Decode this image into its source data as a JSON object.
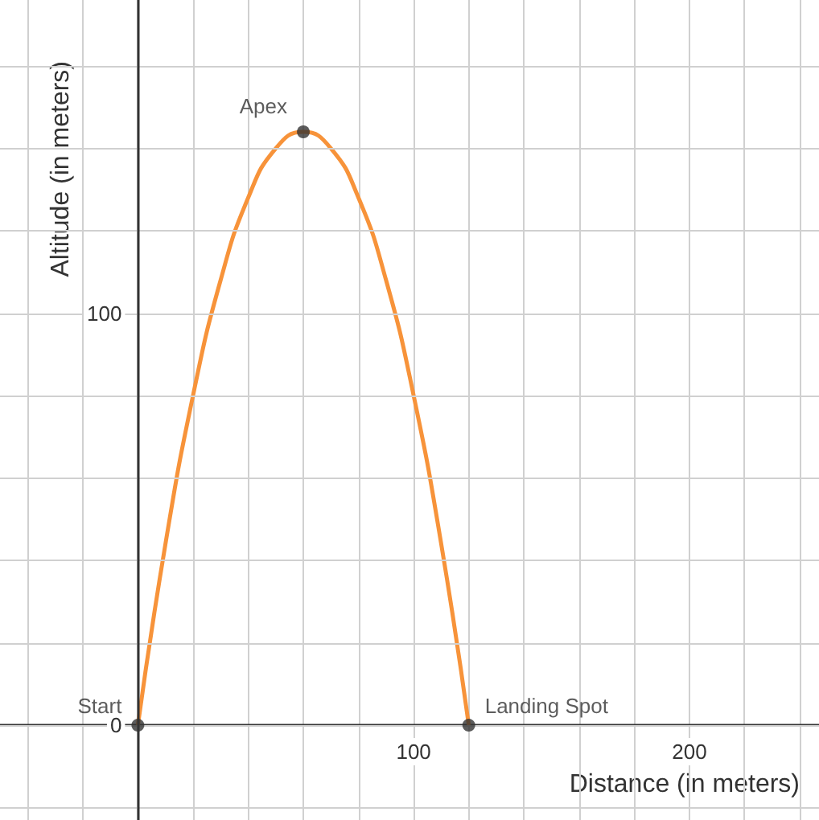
{
  "chart_data": {
    "type": "line",
    "xlabel": "Distance (in meters)",
    "ylabel": "Altitude (in meters)",
    "series": [
      {
        "color": "#f7933a",
        "marker": "none",
        "x": [
          0,
          10,
          20,
          30,
          40,
          50,
          60,
          70,
          80,
          90,
          100,
          110,
          120
        ],
        "values": [
          0,
          44,
          80,
          108,
          128,
          140,
          144,
          140,
          128,
          108,
          80,
          44,
          0
        ]
      },
      {
        "type": "scatter",
        "color": "#333333",
        "marker": "circle",
        "x": [
          0,
          60,
          120
        ],
        "values": [
          0,
          144,
          0
        ]
      }
    ],
    "annotations": [
      {
        "text": "Start",
        "x": 0,
        "y": 0
      },
      {
        "text": "Apex",
        "x": 60,
        "y": 144
      },
      {
        "text": "Landing Spot",
        "x": 120,
        "y": 0
      }
    ],
    "xlim": [
      -50,
      247
    ],
    "ylim": [
      -23,
      176
    ],
    "xticks": [
      {
        "value": -40,
        "label": null
      },
      {
        "value": -20,
        "label": null
      },
      {
        "value": 0,
        "label": null
      },
      {
        "value": 20,
        "label": null
      },
      {
        "value": 40,
        "label": null
      },
      {
        "value": 60,
        "label": null
      },
      {
        "value": 80,
        "label": null
      },
      100,
      {
        "value": 120,
        "label": null
      },
      {
        "value": 140,
        "label": null
      },
      {
        "value": 160,
        "label": null
      },
      {
        "value": 180,
        "label": null
      },
      200,
      {
        "value": 220,
        "label": null
      },
      {
        "value": 240,
        "label": null
      }
    ],
    "yticks": [
      {
        "value": -20,
        "label": null
      },
      0,
      {
        "value": 20,
        "label": null
      },
      {
        "value": 40,
        "label": null
      },
      {
        "value": 60,
        "label": null
      },
      {
        "value": 80,
        "label": null
      },
      100,
      {
        "value": 120,
        "label": null
      },
      {
        "value": 140,
        "label": null
      },
      {
        "value": 160,
        "label": null
      }
    ],
    "grid": true
  }
}
